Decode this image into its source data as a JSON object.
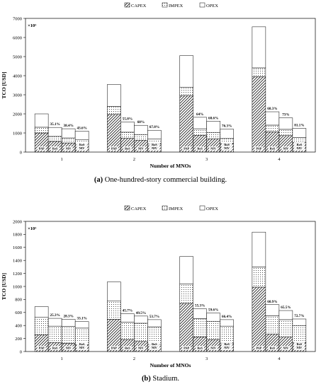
{
  "chart_data": [
    {
      "type": "bar",
      "stacked": true,
      "caption_prefix": "(a)",
      "caption_text": " One-hundred-story commercial building.",
      "legend": [
        "CAPEX",
        "IMPEX",
        "OPEX"
      ],
      "legend_position": "top",
      "xlabel": "Number of MNOs",
      "ylabel": "TCO [USD]",
      "y_multiplier": "×10³",
      "ylim": [
        0,
        7000
      ],
      "yticks": [
        0,
        1000,
        2000,
        3000,
        4000,
        5000,
        6000,
        7000
      ],
      "categories": [
        "1",
        "2",
        "3",
        "4"
      ],
      "bar_labels": [
        "PAP",
        "RoS",
        "NIV",
        "RoSNIV"
      ],
      "groups": [
        {
          "category": "1",
          "bars": [
            {
              "label": "PAP",
              "capex": 1000,
              "impex": 300,
              "opex": 700,
              "pct": ""
            },
            {
              "label": "RoS",
              "capex": 560,
              "impex": 260,
              "opex": 470,
              "pct": "35.1%"
            },
            {
              "label": "NIV",
              "capex": 480,
              "impex": 260,
              "opex": 480,
              "pct": "38.4%"
            },
            {
              "label": "RoSNIV",
              "capex": 380,
              "impex": 260,
              "opex": 460,
              "pct": "43.6%"
            }
          ]
        },
        {
          "category": "2",
          "bars": [
            {
              "label": "PAP",
              "capex": 1970,
              "impex": 420,
              "opex": 1150,
              "pct": ""
            },
            {
              "label": "RoS",
              "capex": 720,
              "impex": 320,
              "opex": 540,
              "pct": "55.8%"
            },
            {
              "label": "NIV",
              "capex": 620,
              "impex": 300,
              "opex": 480,
              "pct": "60%"
            },
            {
              "label": "RoSNIV",
              "capex": 420,
              "impex": 260,
              "opex": 460,
              "pct": "67.8%"
            }
          ]
        },
        {
          "category": "3",
          "bars": [
            {
              "label": "PAP",
              "capex": 2960,
              "impex": 440,
              "opex": 1650,
              "pct": ""
            },
            {
              "label": "RoS",
              "capex": 880,
              "impex": 340,
              "opex": 600,
              "pct": "64%"
            },
            {
              "label": "NIV",
              "capex": 700,
              "impex": 330,
              "opex": 590,
              "pct": "68.6%"
            },
            {
              "label": "RoSNIV",
              "capex": 450,
              "impex": 260,
              "opex": 490,
              "pct": "76.3%"
            }
          ]
        },
        {
          "category": "4",
          "bars": [
            {
              "label": "PAP",
              "capex": 3950,
              "impex": 460,
              "opex": 2150,
              "pct": ""
            },
            {
              "label": "RoS",
              "capex": 1060,
              "impex": 350,
              "opex": 700,
              "pct": "68.3%"
            },
            {
              "label": "NIV",
              "capex": 860,
              "impex": 330,
              "opex": 600,
              "pct": "73%"
            },
            {
              "label": "RoSNIV",
              "capex": 500,
              "impex": 260,
              "opex": 480,
              "pct": "81.1%"
            }
          ]
        }
      ]
    },
    {
      "type": "bar",
      "stacked": true,
      "caption_prefix": "(b)",
      "caption_text": " Stadium.",
      "legend": [
        "CAPEX",
        "IMPEX",
        "OPEX"
      ],
      "legend_position": "top",
      "xlabel": "Number of MNOs",
      "ylabel": "TCO [USD]",
      "y_multiplier": "×10³",
      "ylim": [
        0,
        2000
      ],
      "yticks": [
        0,
        200,
        400,
        600,
        800,
        1000,
        1200,
        1400,
        1600,
        1800,
        2000
      ],
      "categories": [
        "1",
        "2",
        "3",
        "4"
      ],
      "bar_labels": [
        "PAP",
        "RoS",
        "NIV",
        "RoSNIV"
      ],
      "groups": [
        {
          "category": "1",
          "bars": [
            {
              "label": "PAP",
              "capex": 255,
              "impex": 270,
              "opex": 165,
              "pct": ""
            },
            {
              "label": "RoS",
              "capex": 140,
              "impex": 250,
              "opex": 120,
              "pct": "25.3%"
            },
            {
              "label": "NIV",
              "capex": 125,
              "impex": 260,
              "opex": 110,
              "pct": "28.3%"
            },
            {
              "label": "RoSNIV",
              "capex": 105,
              "impex": 255,
              "opex": 100,
              "pct": "33.1%"
            }
          ]
        },
        {
          "category": "2",
          "bars": [
            {
              "label": "PAP",
              "capex": 495,
              "impex": 285,
              "opex": 290,
              "pct": ""
            },
            {
              "label": "RoS",
              "capex": 185,
              "impex": 265,
              "opex": 130,
              "pct": "45.7%"
            },
            {
              "label": "NIV",
              "capex": 155,
              "impex": 280,
              "opex": 110,
              "pct": "49.5%"
            },
            {
              "label": "RoSNIV",
              "capex": 110,
              "impex": 270,
              "opex": 110,
              "pct": "53.7%"
            }
          ]
        },
        {
          "category": "3",
          "bars": [
            {
              "label": "PAP",
              "capex": 740,
              "impex": 300,
              "opex": 420,
              "pct": ""
            },
            {
              "label": "RoS",
              "capex": 225,
              "impex": 280,
              "opex": 150,
              "pct": "55.3%"
            },
            {
              "label": "NIV",
              "capex": 185,
              "impex": 280,
              "opex": 125,
              "pct": "59.6%"
            },
            {
              "label": "RoSNIV",
              "capex": 130,
              "impex": 260,
              "opex": 100,
              "pct": "66.4%"
            }
          ]
        },
        {
          "category": "4",
          "bars": [
            {
              "label": "PAP",
              "capex": 990,
              "impex": 310,
              "opex": 535,
              "pct": ""
            },
            {
              "label": "RoS",
              "capex": 270,
              "impex": 280,
              "opex": 170,
              "pct": "60.9%"
            },
            {
              "label": "NIV",
              "capex": 220,
              "impex": 270,
              "opex": 140,
              "pct": "65.5%"
            },
            {
              "label": "RoSNIV",
              "capex": 140,
              "impex": 260,
              "opex": 100,
              "pct": "72.7%"
            }
          ]
        }
      ]
    }
  ]
}
